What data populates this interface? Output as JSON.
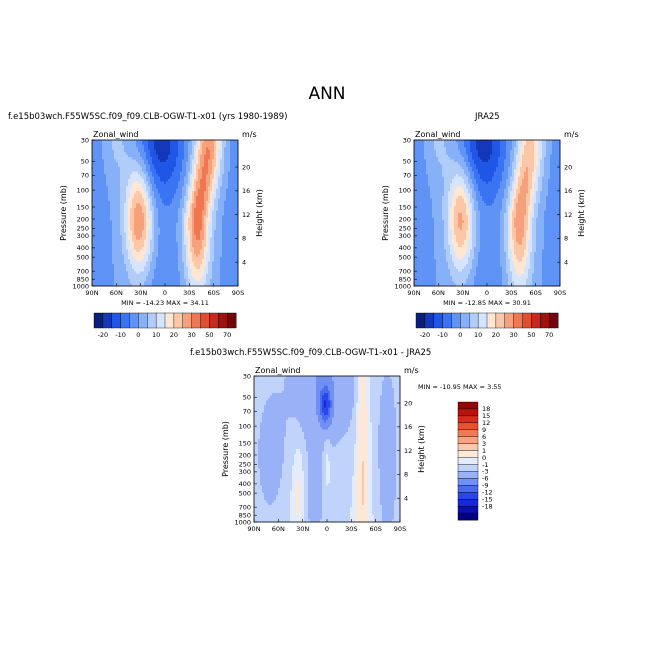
{
  "page": {
    "title": "ANN"
  },
  "palettes": {
    "abs": [
      "#0a1f7d",
      "#1537b9",
      "#1f56e6",
      "#3b74f2",
      "#5f93f5",
      "#86b0f7",
      "#b0cdfa",
      "#d6e5fd",
      "#fde7d3",
      "#fbc7a8",
      "#f6a07c",
      "#ef7752",
      "#e14d31",
      "#c7291c",
      "#a0120f",
      "#72070b"
    ],
    "diff": [
      "#000080",
      "#0b0fb2",
      "#1627dc",
      "#2a48ea",
      "#4a6cf0",
      "#7190f4",
      "#99b2f7",
      "#c0d3fa",
      "#e2ecfd",
      "#fde8d8",
      "#fbc8ae",
      "#f8a27f",
      "#f27a52",
      "#ea5130",
      "#d92a1a",
      "#b8120c",
      "#8f0706"
    ]
  },
  "chart_data": [
    {
      "type": "heatmap",
      "title": "f.e15b03wch.F55W5SC.f09_f09.CLB-OGW-T1-x01 (yrs 1980-1989)",
      "left_label": "Zonal_wind",
      "right_label": "m/s",
      "ylabel": "Pressure (mb)",
      "y2label": "Height (km)",
      "x_ticks": [
        "90N",
        "60N",
        "30N",
        "0",
        "30S",
        "60S",
        "90S"
      ],
      "y_ticks": [
        "30",
        "50",
        "70",
        "100",
        "150",
        "200",
        "250",
        "300",
        "400",
        "500",
        "700",
        "850",
        "1000"
      ],
      "y2_ticks": [
        "20",
        "16",
        "12",
        "8",
        "4"
      ],
      "stats": "MIN = -14.23   MAX = 34.11",
      "colorbar_labels": [
        "-20",
        "-10",
        "0",
        "10",
        "20",
        "30",
        "50",
        "70"
      ],
      "features": [
        {
          "lat": 4,
          "p": 50,
          "value": -14.2
        },
        {
          "lat": 32,
          "p": 200,
          "value": 30.5
        },
        {
          "lat": -42,
          "p": 200,
          "value": 34.1
        },
        {
          "lat": -52,
          "p": 30,
          "value": 32
        }
      ]
    },
    {
      "type": "heatmap",
      "title": "JRA25",
      "left_label": "Zonal_wind",
      "right_label": "m/s",
      "ylabel": "Pressure (mb)",
      "y2label": "Height (km)",
      "x_ticks": [
        "90N",
        "60N",
        "30N",
        "0",
        "30S",
        "60S",
        "90S"
      ],
      "y_ticks": [
        "30",
        "50",
        "70",
        "100",
        "150",
        "200",
        "250",
        "300",
        "400",
        "500",
        "700",
        "850",
        "1000"
      ],
      "y2_ticks": [
        "20",
        "16",
        "12",
        "8",
        "4"
      ],
      "stats": "MIN = -12.85   MAX = 30.91",
      "colorbar_labels": [
        "-20",
        "-10",
        "0",
        "10",
        "20",
        "30",
        "50",
        "70"
      ],
      "features": [
        {
          "lat": 4,
          "p": 50,
          "value": -12.9
        },
        {
          "lat": 32,
          "p": 200,
          "value": 29
        },
        {
          "lat": -30,
          "p": 200,
          "value": 30.9
        },
        {
          "lat": -52,
          "p": 30,
          "value": 25
        }
      ]
    },
    {
      "type": "heatmap",
      "title": "f.e15b03wch.F55W5SC.f09_f09.CLB-OGW-T1-x01  - JRA25",
      "left_label": "Zonal_wind",
      "right_label": "m/s",
      "ylabel": "Pressure (mb)",
      "y2label": "Height (km)",
      "x_ticks": [
        "90N",
        "60N",
        "30N",
        "0",
        "30S",
        "60S",
        "90S"
      ],
      "y_ticks": [
        "30",
        "50",
        "70",
        "100",
        "150",
        "200",
        "250",
        "300",
        "400",
        "500",
        "700",
        "850",
        "1000"
      ],
      "y2_ticks": [
        "20",
        "16",
        "12",
        "8",
        "4"
      ],
      "stats": "MIN = -10.95   MAX =   3.55",
      "colorbar_labels": [
        "18",
        "15",
        "12",
        "9",
        "6",
        "3",
        "1",
        "0",
        "-1",
        "-3",
        "-6",
        "-9",
        "-12",
        "-15",
        "-18"
      ],
      "features": [
        {
          "lat": 2,
          "p": 60,
          "value": -10.9
        },
        {
          "lat": -43,
          "p": 250,
          "value": 3.5
        },
        {
          "lat": 36,
          "p": 400,
          "value": 1.5
        }
      ]
    }
  ]
}
